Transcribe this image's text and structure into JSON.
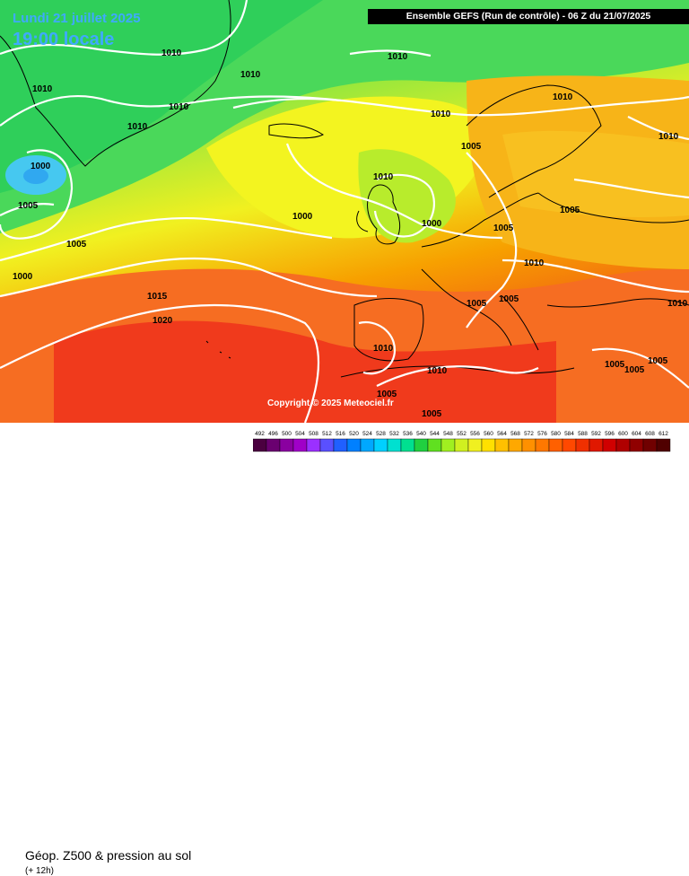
{
  "header": {
    "date": "Lundi 21 juillet 2025",
    "time": "19:00 locale",
    "run_title": "Ensemble GEFS  (Run de contrôle)  -  06 Z du 21/07/2025"
  },
  "map": {
    "copyright": "Copyright © 2025 Meteociel.fr",
    "isobar_labels": [
      "1010",
      "1010",
      "1010",
      "1010",
      "1010",
      "1010",
      "1010",
      "1010",
      "1000",
      "1005",
      "1005",
      "1000",
      "1000",
      "1010",
      "1000",
      "1005",
      "1015",
      "1020",
      "1005",
      "1005",
      "1010",
      "1005",
      "1005",
      "1010",
      "1010",
      "1010",
      "1005",
      "1005",
      "1005",
      "1005",
      "1005",
      "1010"
    ],
    "contour_colors": {
      "green": "#44d84a",
      "yellow_green": "#b8ee2a",
      "yellow": "#f5f520",
      "orange": "#f7b000",
      "red": "#f05020",
      "cyan": "#46c8f0"
    }
  },
  "footer": {
    "variable": "Géop. Z500 & pression au sol",
    "lead": "(+ 12h)"
  },
  "scale": {
    "labels": [
      "492",
      "496",
      "500",
      "504",
      "508",
      "512",
      "516",
      "520",
      "524",
      "528",
      "532",
      "536",
      "540",
      "544",
      "548",
      "552",
      "556",
      "560",
      "564",
      "568",
      "572",
      "576",
      "580",
      "584",
      "588",
      "592",
      "596",
      "600",
      "604",
      "608",
      "612"
    ],
    "colors": [
      "#4b0040",
      "#6a0070",
      "#8a00a0",
      "#a000c8",
      "#9b30ff",
      "#5a50ff",
      "#2060ff",
      "#0080ff",
      "#00a8ff",
      "#00d0ff",
      "#00e0d0",
      "#00e090",
      "#20d040",
      "#60e020",
      "#a0f020",
      "#d0f020",
      "#f0f020",
      "#ffe000",
      "#ffc000",
      "#ffa800",
      "#ff9000",
      "#ff7800",
      "#ff6000",
      "#ff4800",
      "#f03000",
      "#e01800",
      "#d00000",
      "#b00000",
      "#900000",
      "#700000",
      "#500000"
    ]
  }
}
